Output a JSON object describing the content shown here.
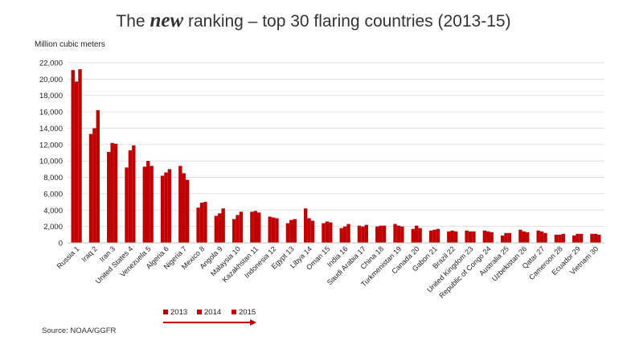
{
  "chart_data": {
    "type": "bar",
    "title_parts": [
      "The ",
      "new",
      " ranking – top 30 flaring countries (2013-15)"
    ],
    "ylabel": "Million cubic meters",
    "xlabel": "",
    "ylim": [
      0,
      22000
    ],
    "yticks": [
      0,
      2000,
      4000,
      6000,
      8000,
      10000,
      12000,
      14000,
      16000,
      18000,
      20000,
      22000
    ],
    "ytick_labels": [
      "0",
      "2,000",
      "4,000",
      "6,000",
      "8,000",
      "10,000",
      "12,000",
      "14,000",
      "16,000",
      "18,000",
      "20,000",
      "22,000"
    ],
    "grid": true,
    "legend_position": "bottom-left",
    "bar_color": "#c00000",
    "arrow_color": "#c00000",
    "categories": [
      "Russia 1",
      "Iraq 2",
      "Iran 3",
      "United States 4",
      "Venezuela 5",
      "Algeria 6",
      "Nigeria 7",
      "Mexico 8",
      "Angola 9",
      "Malaysia 10",
      "Kazakhstan 11",
      "Indonesia 12",
      "Egypt 13",
      "Libya 14",
      "Oman 15",
      "India 16",
      "Saudi Arabia 17",
      "China 18",
      "Turkmenistan 19",
      "Canada 20",
      "Gabon 21",
      "Brazil 22",
      "United Kingdom 23",
      "Republic of Congo 24",
      "Australia 25",
      "Uzbekistan 26",
      "Qatar 27",
      "Cameroon 28",
      "Ecuador 29",
      "Vietnam 30"
    ],
    "series": [
      {
        "name": "2013",
        "values": [
          21100,
          13300,
          11100,
          9200,
          9300,
          8200,
          9400,
          4300,
          3300,
          2900,
          3800,
          3200,
          2400,
          4200,
          2400,
          1800,
          2100,
          2000,
          2300,
          1700,
          1500,
          1400,
          1500,
          1500,
          900,
          1600,
          1500,
          1000,
          900,
          1100
        ]
      },
      {
        "name": "2014",
        "values": [
          19700,
          14000,
          12200,
          11300,
          10000,
          8600,
          8500,
          4900,
          3600,
          3400,
          3900,
          3100,
          2800,
          3000,
          2600,
          2000,
          2000,
          2100,
          2100,
          2100,
          1600,
          1500,
          1400,
          1400,
          1200,
          1400,
          1400,
          1000,
          1100,
          1100
        ]
      },
      {
        "name": "2015",
        "values": [
          21200,
          16200,
          12100,
          11900,
          9400,
          9000,
          7700,
          5000,
          4200,
          3800,
          3700,
          3000,
          2900,
          2700,
          2500,
          2300,
          2200,
          2100,
          2000,
          1800,
          1700,
          1400,
          1400,
          1300,
          1200,
          1300,
          1200,
          1100,
          1100,
          1000
        ]
      }
    ],
    "source": "Source: NOAA/GGFR"
  }
}
